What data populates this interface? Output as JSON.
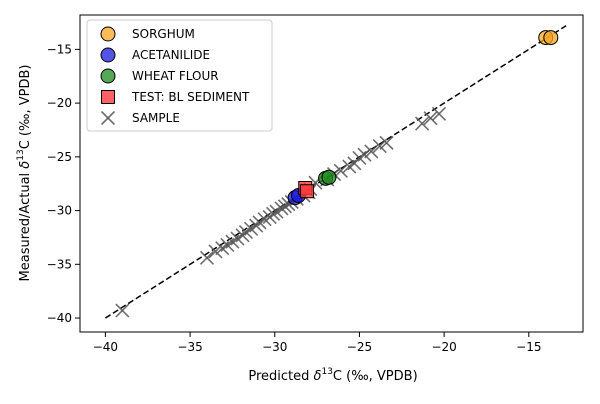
{
  "chart_data": {
    "type": "scatter",
    "xlabel_main": "Predicted ",
    "xlabel_delta": "δ",
    "xlabel_sup": "13",
    "xlabel_tail": "C (‰, VPDB)",
    "ylabel_main": "Measured/Actual ",
    "ylabel_delta": "δ",
    "ylabel_sup": "13",
    "ylabel_tail": "C (‰, VPDB)",
    "xlim": [
      -41.5,
      -11.8
    ],
    "ylim": [
      -41.3,
      -11.8
    ],
    "x_ticks": [
      -40,
      -35,
      -30,
      -25,
      -20,
      -15
    ],
    "y_ticks": [
      -40,
      -35,
      -30,
      -25,
      -20,
      -15
    ],
    "x_tick_labels": [
      "−40",
      "−35",
      "−30",
      "−25",
      "−20",
      "−15"
    ],
    "y_tick_labels": [
      "−40",
      "−35",
      "−30",
      "−25",
      "−20",
      "−15"
    ],
    "grid": false,
    "legend_position": "upper-left",
    "identity_line": {
      "x": [
        -40,
        -12.8
      ],
      "y": [
        -40,
        -12.8
      ],
      "style": "dashed",
      "color": "#000000"
    },
    "series": [
      {
        "name": "SORGHUM",
        "marker": "circle",
        "color": "#f5a623",
        "points": [
          [
            -14.0,
            -13.9
          ],
          [
            -13.7,
            -13.9
          ]
        ]
      },
      {
        "name": "ACETANILIDE",
        "marker": "circle",
        "color": "#1a1adb",
        "points": [
          [
            -28.8,
            -28.8
          ],
          [
            -28.6,
            -28.6
          ]
        ]
      },
      {
        "name": "WHEAT FLOUR",
        "marker": "circle",
        "color": "#1e8a1e",
        "points": [
          [
            -27.0,
            -27.0
          ],
          [
            -26.8,
            -26.9
          ]
        ]
      },
      {
        "name": "TEST: BL SEDIMENT",
        "marker": "square",
        "color": "#ff3b3b",
        "points": [
          [
            -28.2,
            -27.9
          ],
          [
            -28.1,
            -28.2
          ]
        ]
      },
      {
        "name": "SAMPLE",
        "marker": "x",
        "color": "#555555",
        "points": [
          [
            -39.0,
            -39.3
          ],
          [
            -34.0,
            -34.4
          ],
          [
            -33.5,
            -33.8
          ],
          [
            -33.1,
            -33.5
          ],
          [
            -32.8,
            -33.2
          ],
          [
            -32.5,
            -32.9
          ],
          [
            -32.2,
            -32.6
          ],
          [
            -31.9,
            -32.3
          ],
          [
            -31.7,
            -32.0
          ],
          [
            -31.4,
            -31.7
          ],
          [
            -31.1,
            -31.4
          ],
          [
            -30.9,
            -31.1
          ],
          [
            -30.6,
            -30.8
          ],
          [
            -30.3,
            -30.6
          ],
          [
            -30.1,
            -30.3
          ],
          [
            -29.9,
            -30.1
          ],
          [
            -29.6,
            -29.8
          ],
          [
            -29.4,
            -29.6
          ],
          [
            -29.2,
            -29.4
          ],
          [
            -29.0,
            -29.2
          ],
          [
            -28.7,
            -28.9
          ],
          [
            -28.3,
            -28.6
          ],
          [
            -28.0,
            -28.3
          ],
          [
            -27.9,
            -28.0
          ],
          [
            -27.6,
            -27.4
          ],
          [
            -26.9,
            -27.1
          ],
          [
            -26.5,
            -26.6
          ],
          [
            -26.1,
            -26.3
          ],
          [
            -25.6,
            -25.9
          ],
          [
            -25.3,
            -25.6
          ],
          [
            -25.0,
            -25.1
          ],
          [
            -24.7,
            -24.8
          ],
          [
            -24.3,
            -24.5
          ],
          [
            -23.8,
            -24.0
          ],
          [
            -23.4,
            -23.7
          ],
          [
            -21.3,
            -21.9
          ],
          [
            -20.8,
            -21.4
          ],
          [
            -20.3,
            -21.0
          ]
        ]
      }
    ]
  }
}
